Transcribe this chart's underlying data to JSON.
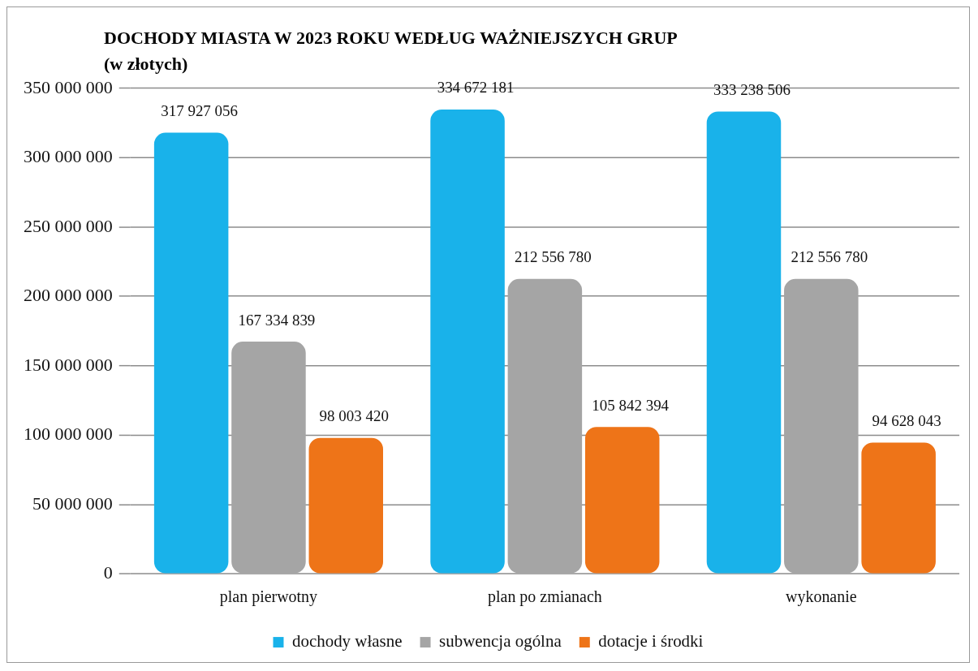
{
  "chart_data": {
    "type": "bar",
    "title": "DOCHODY MIASTA W 2023 ROKU WEDŁUG WAŻNIEJSZYCH GRUP",
    "subtitle": "(w złotych)",
    "categories": [
      "plan pierwotny",
      "plan po zmianach",
      "wykonanie"
    ],
    "series": [
      {
        "name": "dochody własne",
        "color": "#19b2ea",
        "values": [
          317927056,
          334672181,
          333238506
        ],
        "value_labels": [
          "317 927 056",
          "334 672 181",
          "333 238 506"
        ]
      },
      {
        "name": "subwencja ogólna",
        "color": "#a5a5a5",
        "values": [
          167334839,
          212556780,
          212556780
        ],
        "value_labels": [
          "167 334 839",
          "212 556 780",
          "212 556 780"
        ]
      },
      {
        "name": "dotacje i środki",
        "color": "#ee7418",
        "values": [
          98003420,
          105842394,
          94628043
        ],
        "value_labels": [
          "98 003 420",
          "105 842 394",
          "94 628 043"
        ]
      }
    ],
    "ylim": [
      0,
      350000000
    ],
    "yticks": [
      0,
      {
        "value": 50000000,
        "label": "50 000 000"
      },
      {
        "value": 100000000,
        "label": "100 000 000"
      },
      {
        "value": 150000000,
        "label": "150 000 000"
      },
      {
        "value": 200000000,
        "label": "200 000 000"
      },
      {
        "value": 250000000,
        "label": "250 000 000"
      },
      {
        "value": 300000000,
        "label": "300 000 000"
      },
      {
        "value": 350000000,
        "label": "350 000 000"
      }
    ],
    "grid": "y",
    "legend": "bottom"
  }
}
